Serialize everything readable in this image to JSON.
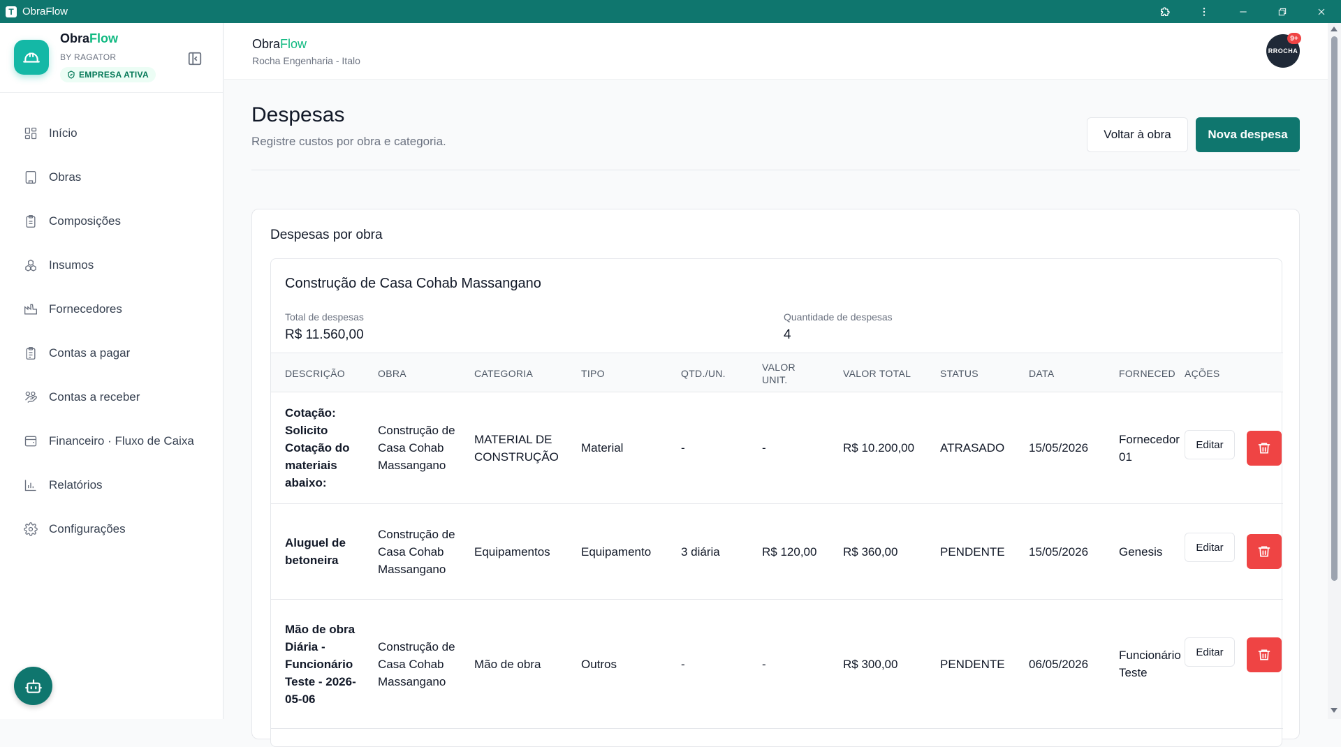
{
  "window": {
    "title": "ObraFlow"
  },
  "sidebar": {
    "brand_main": "Obra",
    "brand_accent": "Flow",
    "brand_by": "BY RAGATOR",
    "company_status": "EMPRESA ATIVA",
    "items": [
      {
        "label": "Início",
        "icon": "grid-icon"
      },
      {
        "label": "Obras",
        "icon": "building-icon"
      },
      {
        "label": "Composições",
        "icon": "clipboard-icon"
      },
      {
        "label": "Insumos",
        "icon": "boxes-icon"
      },
      {
        "label": "Fornecedores",
        "icon": "factory-icon"
      },
      {
        "label": "Contas a pagar",
        "icon": "clipboard-list-icon"
      },
      {
        "label": "Contas a receber",
        "icon": "hand-coins-icon"
      },
      {
        "label": "Financeiro · Fluxo de Caixa",
        "icon": "wallet-icon"
      },
      {
        "label": "Relatórios",
        "icon": "bar-chart-icon"
      },
      {
        "label": "Configurações",
        "icon": "gear-icon"
      }
    ]
  },
  "header": {
    "title_main": "Obra",
    "title_accent": "Flow",
    "subtitle": "Rocha Engenharia - Italo",
    "notification_count": "9+",
    "avatar_text_a": "R",
    "avatar_text_b": "ROCHA"
  },
  "main": {
    "title": "Despesas",
    "subtitle": "Registre custos por obra e categoria.",
    "back_button": "Voltar à obra",
    "new_button": "Nova despesa",
    "section_title": "Despesas por obra",
    "obra": {
      "name": "Construção de Casa Cohab Massangano",
      "total_label": "Total de despesas",
      "total_value": "R$ 11.560,00",
      "count_label": "Quantidade de despesas",
      "count_value": "4"
    },
    "table": {
      "headers": [
        "DESCRIÇÃO",
        "OBRA",
        "CATEGORIA",
        "TIPO",
        "QTD./UN.",
        "VALOR UNIT.",
        "VALOR TOTAL",
        "STATUS",
        "DATA",
        "FORNECED",
        "AÇÕES"
      ],
      "edit_label": "Editar",
      "rows": [
        {
          "descricao": "Cotação: Solicito Cotação do materiais abaixo:",
          "obra": "Construção de Casa Cohab Massangano",
          "categoria": "MATERIAL DE CONSTRUÇÃO",
          "tipo": "Material",
          "qtd": "-",
          "valor_unit": "-",
          "valor_total": "R$ 10.200,00",
          "status": "ATRASADO",
          "data": "15/05/2026",
          "fornecedor": "Fornecedor 01"
        },
        {
          "descricao": "Aluguel de betoneira",
          "obra": "Construção de Casa Cohab Massangano",
          "categoria": "Equipamentos",
          "tipo": "Equipamento",
          "qtd": "3 diária",
          "valor_unit": "R$ 120,00",
          "valor_total": "R$ 360,00",
          "status": "PENDENTE",
          "data": "15/05/2026",
          "fornecedor": "Genesis"
        },
        {
          "descricao": "Mão de obra Diária - Funcionário Teste - 2026-05-06",
          "obra": "Construção de Casa Cohab Massangano",
          "categoria": "Mão de obra",
          "tipo": "Outros",
          "qtd": "-",
          "valor_unit": "-",
          "valor_total": "R$ 300,00",
          "status": "PENDENTE",
          "data": "06/05/2026",
          "fornecedor": "Funcionário Teste"
        }
      ]
    }
  }
}
